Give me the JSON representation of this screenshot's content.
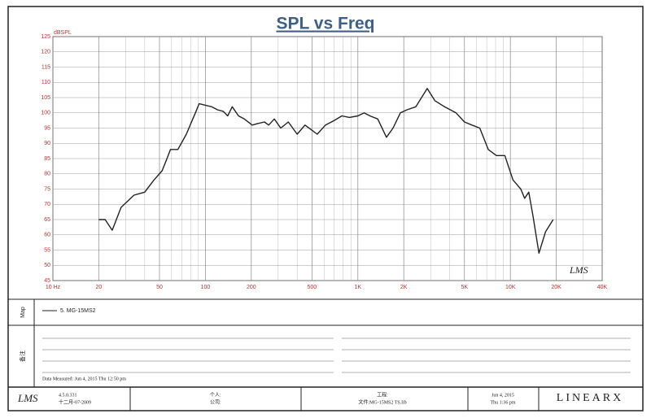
{
  "chart_data": {
    "type": "line",
    "title": "SPL vs Freq",
    "y_label": "dBSPL",
    "log_x": true,
    "grid": true,
    "x": [
      20,
      22,
      24.5,
      28,
      34,
      40,
      46,
      52,
      56,
      59,
      66,
      75,
      86,
      91,
      100,
      110,
      120,
      131,
      140,
      150,
      165,
      180,
      203,
      220,
      244,
      260,
      283,
      312,
      350,
      400,
      450,
      541,
      613,
      700,
      785,
      880,
      1000,
      1100,
      1200,
      1350,
      1540,
      1700,
      1900,
      2100,
      2400,
      2850,
      3200,
      3700,
      4400,
      5000,
      5600,
      6300,
      7160,
      8100,
      9200,
      10400,
      11700,
      12400,
      13200,
      14100,
      15400,
      17000,
      19100
    ],
    "series": [
      {
        "name": "5. MG-15MS2",
        "color": "#222222",
        "values": [
          65,
          65,
          61.5,
          69,
          73,
          74,
          78,
          81,
          85,
          88,
          88,
          93,
          100,
          103,
          102.5,
          102,
          101,
          100.5,
          99,
          102,
          99,
          98,
          96,
          96.5,
          97,
          96,
          98,
          95,
          97,
          93,
          96,
          93,
          96,
          97.5,
          99,
          98.5,
          99,
          100,
          99,
          98,
          92,
          95,
          100,
          101,
          102,
          108,
          104,
          102,
          100,
          97,
          96,
          95,
          88,
          86,
          86,
          78,
          75,
          72,
          74,
          66,
          54,
          61,
          65
        ]
      }
    ],
    "xlim": [
      10,
      40000
    ],
    "xticks": [
      {
        "value": 10,
        "label": "10 Hz"
      },
      20,
      50,
      100,
      200,
      500,
      {
        "value": 1000,
        "label": "1K"
      },
      {
        "value": 2000,
        "label": "2K"
      },
      {
        "value": 5000,
        "label": "5K"
      },
      {
        "value": 10000,
        "label": "10K"
      },
      {
        "value": 20000,
        "label": "20K"
      },
      {
        "value": 40000,
        "label": "40K"
      }
    ],
    "xminorticks": [
      30,
      40,
      60,
      70,
      80,
      90,
      300,
      400,
      600,
      700,
      800,
      900,
      3000,
      4000,
      6000,
      7000,
      8000,
      9000,
      30000
    ],
    "ylim": [
      45,
      125
    ],
    "yticks": [
      45,
      50,
      55,
      60,
      65,
      70,
      75,
      80,
      85,
      90,
      95,
      100,
      105,
      110,
      115,
      120,
      125
    ],
    "logo": "LMS"
  },
  "panels": {
    "map_label": "Map",
    "notes_label": "备注",
    "measured": "Data Measured: Jun 4, 2015 Thu 12:50 pm"
  },
  "footer": {
    "logo": "LMS",
    "version": "4.5.0.331",
    "build_date": "十二月-07-2009",
    "person": "个人:",
    "company": "公司:",
    "project": "工程:",
    "file": "文件:MG-15MS2 TS.lib",
    "date": "Jun 4, 2015",
    "time": "Thu 1:36 pm",
    "brand": "LINEARX"
  }
}
